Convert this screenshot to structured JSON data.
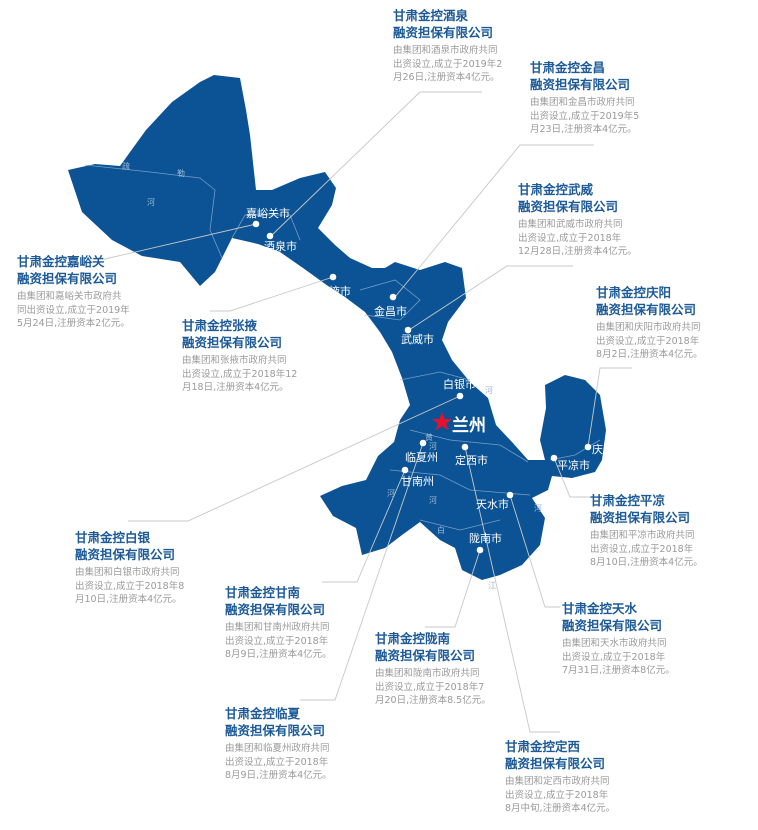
{
  "colors": {
    "map_fill": "#0b5394",
    "title": "#1d5a97",
    "desc": "#9a9a9a",
    "capital_star": "#e8112d",
    "leader_line": "#c8c8c8"
  },
  "capital": {
    "label": "兰州",
    "icon": "star-icon"
  },
  "cities": [
    "嘉峪关市",
    "酒泉市",
    "张掖市",
    "金昌市",
    "武威市",
    "白银市",
    "临夏州",
    "定西市",
    "甘南州",
    "天水市",
    "陇南市",
    "庆阳市",
    "平凉市"
  ],
  "rivers": [
    "疏",
    "勒",
    "河",
    "河",
    "黄",
    "河",
    "河",
    "河",
    "河",
    "白",
    "江"
  ],
  "companies": [
    {
      "title": [
        "甘肃金控酒泉",
        "融资担保有限公司"
      ],
      "desc": [
        "由集团和酒泉市政府共同",
        "出资设立,成立于2019年2",
        "月26日,注册资本4亿元。"
      ]
    },
    {
      "title": [
        "甘肃金控金昌",
        "融资担保有限公司"
      ],
      "desc": [
        "由集团和金昌市政府共同",
        "出资设立,成立于2019年5",
        "月23日,注册资本4亿元。"
      ]
    },
    {
      "title": [
        "甘肃金控武威",
        "融资担保有限公司"
      ],
      "desc": [
        "由集团和武威市政府共同",
        "出资设立,成立于2018年",
        "12月28日,注册资本4亿元。"
      ]
    },
    {
      "title": [
        "甘肃金控嘉峪关",
        "融资担保有限公司"
      ],
      "desc": [
        "由集团和嘉峪关市政府共",
        "同出资设立,成立于2019年",
        "5月24日,注册资本2亿元。"
      ]
    },
    {
      "title": [
        "甘肃金控张掖",
        "融资担保有限公司"
      ],
      "desc": [
        "由集团和张掖市政府共同",
        "出资设立,成立于2018年12",
        "月18日,注册资本4亿元。"
      ]
    },
    {
      "title": [
        "甘肃金控庆阳",
        "融资担保有限公司"
      ],
      "desc": [
        "由集团和庆阳市政府共同",
        "出资设立,成立于2018年",
        "8月2日,注册资本4亿元。"
      ]
    },
    {
      "title": [
        "甘肃金控白银",
        "融资担保有限公司"
      ],
      "desc": [
        "由集团和白银市政府共同",
        "出资设立,成立于2018年8",
        "月10日,注册资本4亿元。"
      ]
    },
    {
      "title": [
        "甘肃金控平凉",
        "融资担保有限公司"
      ],
      "desc": [
        "由集团和平凉市政府共同",
        "出资设立,成立于2018年",
        "8月10日,注册资本4亿元。"
      ]
    },
    {
      "title": [
        "甘肃金控甘南",
        "融资担保有限公司"
      ],
      "desc": [
        "由集团和甘南州政府共同",
        "出资设立,成立于2018年",
        "8月9日,注册资本4亿元。"
      ]
    },
    {
      "title": [
        "甘肃金控天水",
        "融资担保有限公司"
      ],
      "desc": [
        "由集团和天水市政府共同",
        "出资设立,成立于2018年",
        "7月31日,注册资本8亿元。"
      ]
    },
    {
      "title": [
        "甘肃金控陇南",
        "融资担保有限公司"
      ],
      "desc": [
        "由集团和陇南市政府共同",
        "出资设立,成立于2018年7",
        "月20日,注册资本8.5亿元。"
      ]
    },
    {
      "title": [
        "甘肃金控临夏",
        "融资担保有限公司"
      ],
      "desc": [
        "由集团和临夏州政府共同",
        "出资设立,成立于2018年",
        "8月9日,注册资本4亿元。"
      ]
    },
    {
      "title": [
        "甘肃金控定西",
        "融资担保有限公司"
      ],
      "desc": [
        "由集团和定西市政府共同",
        "出资设立,成立于2018年",
        "8月中旬,注册资本4亿元。"
      ]
    }
  ]
}
